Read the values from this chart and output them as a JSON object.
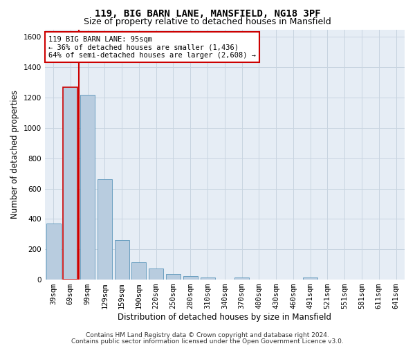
{
  "title1": "119, BIG BARN LANE, MANSFIELD, NG18 3PF",
  "title2": "Size of property relative to detached houses in Mansfield",
  "xlabel": "Distribution of detached houses by size in Mansfield",
  "ylabel": "Number of detached properties",
  "categories": [
    "39sqm",
    "69sqm",
    "99sqm",
    "129sqm",
    "159sqm",
    "190sqm",
    "220sqm",
    "250sqm",
    "280sqm",
    "310sqm",
    "340sqm",
    "370sqm",
    "400sqm",
    "430sqm",
    "460sqm",
    "491sqm",
    "521sqm",
    "551sqm",
    "581sqm",
    "611sqm",
    "641sqm"
  ],
  "values": [
    370,
    1270,
    1220,
    660,
    260,
    115,
    75,
    35,
    25,
    15,
    0,
    15,
    0,
    0,
    0,
    15,
    0,
    0,
    0,
    0,
    0
  ],
  "bar_color": "#b8ccdf",
  "bar_edge_color": "#6a9fc0",
  "highlight_bar_index": 1,
  "highlight_bar_edge_color": "#cc0000",
  "vline_color": "#cc0000",
  "vline_x_index": 1.5,
  "annotation_text": "119 BIG BARN LANE: 95sqm\n← 36% of detached houses are smaller (1,436)\n64% of semi-detached houses are larger (2,608) →",
  "annotation_box_color": "#ffffff",
  "annotation_box_edge_color": "#cc0000",
  "ylim": [
    0,
    1650
  ],
  "yticks": [
    0,
    200,
    400,
    600,
    800,
    1000,
    1200,
    1400,
    1600
  ],
  "footer1": "Contains HM Land Registry data © Crown copyright and database right 2024.",
  "footer2": "Contains public sector information licensed under the Open Government Licence v3.0.",
  "bg_color": "#ffffff",
  "plot_bg_color": "#e6edf5",
  "grid_color": "#c8d4e0",
  "title1_fontsize": 10,
  "title2_fontsize": 9,
  "axis_label_fontsize": 8.5,
  "tick_fontsize": 7.5,
  "annotation_fontsize": 7.5,
  "footer_fontsize": 6.5
}
